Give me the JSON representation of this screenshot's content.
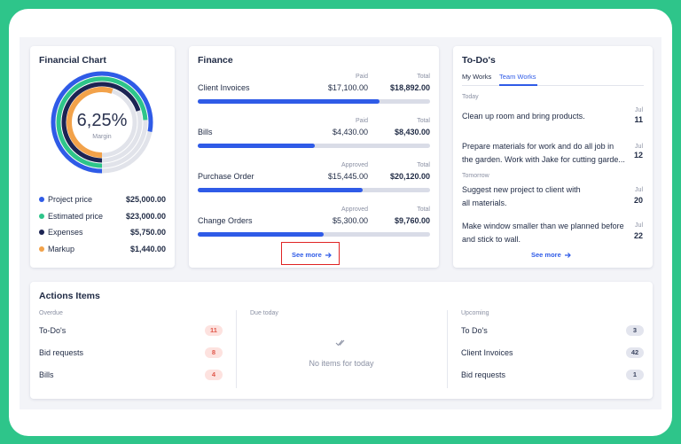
{
  "financial_chart": {
    "title": "Financial Chart",
    "center_value": "6,25%",
    "center_label": "Margin",
    "legend": [
      {
        "label": "Project price",
        "value": "$25,000.00"
      },
      {
        "label": "Estimated price",
        "value": "$23,000.00"
      },
      {
        "label": "Expenses",
        "value": "$5,750.00"
      },
      {
        "label": "Markup",
        "value": "$1,440.00"
      }
    ]
  },
  "finance": {
    "title": "Finance",
    "rows": [
      {
        "label": "Client Invoices",
        "status": "Paid",
        "amount": "$17,100.00",
        "total_label": "Total",
        "total": "$18,892.00"
      },
      {
        "label": "Bills",
        "status": "Paid",
        "amount": "$4,430.00",
        "total_label": "Total",
        "total": "$8,430.00"
      },
      {
        "label": "Purchase Order",
        "status": "Approved",
        "amount": "$15,445.00",
        "total_label": "Total",
        "total": "$20,120.00"
      },
      {
        "label": "Change Orders",
        "status": "Approved",
        "amount": "$5,300.00",
        "total_label": "Total",
        "total": "$9,760.00"
      }
    ],
    "see_more": "See more"
  },
  "todos": {
    "title": "To-Do's",
    "tabs": [
      "My Works",
      "Team Works"
    ],
    "groups": [
      {
        "heading": "Today",
        "items": [
          {
            "text": "Clean up room and bring products.",
            "month": "Jul",
            "day": "11"
          },
          {
            "text": "Prepare materials for work and do all job in the garden. Work with Jake for cutting garde...",
            "month": "Jul",
            "day": "12"
          }
        ]
      },
      {
        "heading": "Tomorrow",
        "items": [
          {
            "text": "Suggest new project to client with all materials.",
            "month": "Jul",
            "day": "20"
          },
          {
            "text": "Make window smaller than we planned before and stick to wall.",
            "month": "Jul",
            "day": "22"
          }
        ]
      }
    ],
    "see_more": "See more"
  },
  "actions": {
    "title": "Actions Items",
    "columns": [
      {
        "heading": "Overdue",
        "items": [
          {
            "label": "To-Do's",
            "count": 11
          },
          {
            "label": "Bid requests",
            "count": 8
          },
          {
            "label": "Bills",
            "count": 4
          }
        ]
      },
      {
        "heading": "Due today",
        "empty": "No items for today"
      },
      {
        "heading": "Upcoming",
        "items": [
          {
            "label": "To Do's",
            "count": 3
          },
          {
            "label": "Client Invoices",
            "count": 42
          },
          {
            "label": "Bid requests",
            "count": 1
          }
        ]
      }
    ]
  }
}
